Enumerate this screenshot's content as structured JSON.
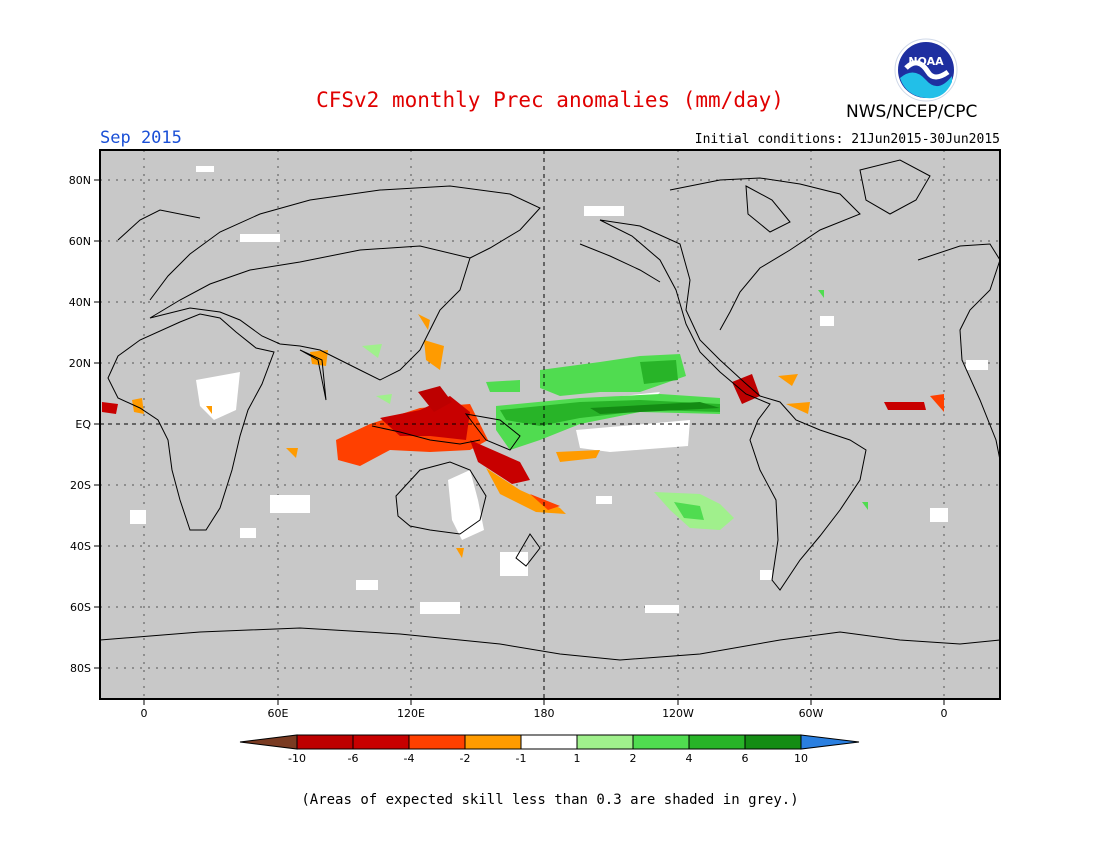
{
  "header": {
    "title": "CFSv2 monthly Prec anomalies (mm/day)",
    "month": "Sep 2015",
    "initial_conditions": "Initial conditions: 21Jun2015-30Jun2015",
    "agency": "NWS/NCEP/CPC",
    "logo_text": "NOAA"
  },
  "map": {
    "lat_labels": [
      "80N",
      "60N",
      "40N",
      "20N",
      "EQ",
      "20S",
      "40S",
      "60S",
      "80S"
    ],
    "lon_labels": [
      "0",
      "60E",
      "120E",
      "180",
      "120W",
      "60W",
      "0"
    ],
    "background_color": "#c8c8c8",
    "coastline_color": "#000000"
  },
  "legend": {
    "labels": [
      "-10",
      "-6",
      "-4",
      "-2",
      "-1",
      "1",
      "2",
      "4",
      "6",
      "10"
    ],
    "colors": [
      "#7a3b22",
      "#bd0000",
      "#c80000",
      "#ff4000",
      "#ff9b00",
      "#ffffff",
      "#a0f08c",
      "#50dc50",
      "#28b428",
      "#148c14",
      "#2a7fe0"
    ]
  },
  "footnote": "(Areas of expected skill less than 0.3 are shaded in grey.)"
}
